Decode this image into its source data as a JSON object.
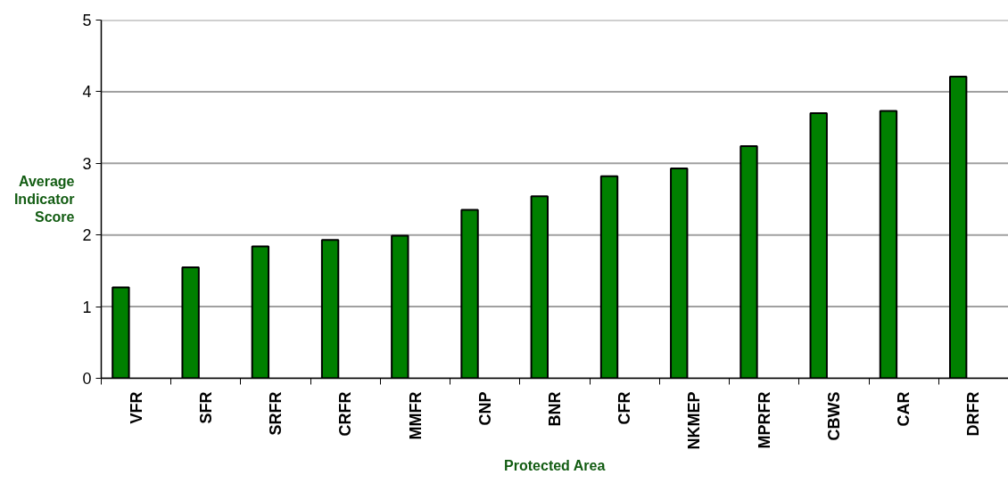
{
  "chart_data": {
    "type": "bar",
    "xlabel": "Protected Area",
    "ylabel": "Average Indicator Score",
    "categories": [
      "VFR",
      "SFR",
      "SRFR",
      "CRFR",
      "MMFR",
      "CNP",
      "BNR",
      "CFR",
      "NKMEP",
      "MPRFR",
      "CBWS",
      "CAR",
      "DRFR"
    ],
    "values": [
      1.27,
      1.55,
      1.84,
      1.93,
      1.99,
      2.35,
      2.54,
      2.82,
      2.93,
      3.24,
      3.7,
      3.73,
      4.21
    ],
    "color": "#008000",
    "ylim": [
      0,
      5
    ],
    "yticks": [
      0,
      1,
      2,
      3,
      4,
      5
    ],
    "grid": "y"
  }
}
